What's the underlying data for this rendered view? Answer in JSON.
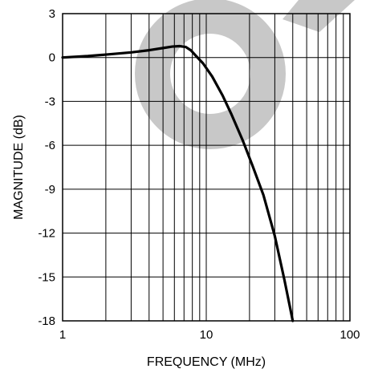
{
  "chart_data": {
    "type": "line",
    "title": "",
    "xlabel": "FREQUENCY (MHz)",
    "ylabel": "MAGNITUDE (dB)",
    "x_scale": "log",
    "xlim": [
      1,
      100
    ],
    "ylim": [
      -18,
      3
    ],
    "x_tick_labels": [
      {
        "value": 1,
        "label": "1"
      },
      {
        "value": 10,
        "label": "10"
      },
      {
        "value": 100,
        "label": "100"
      }
    ],
    "y_ticks": [
      {
        "value": 3,
        "label": "3"
      },
      {
        "value": 0,
        "label": "0"
      },
      {
        "value": -3,
        "label": "-3"
      },
      {
        "value": -6,
        "label": "-6"
      },
      {
        "value": -9,
        "label": "-9"
      },
      {
        "value": -12,
        "label": "-12"
      },
      {
        "value": -15,
        "label": "-15"
      },
      {
        "value": -18,
        "label": "-18"
      }
    ],
    "grid": true,
    "series": [
      {
        "color": "#000000",
        "points": [
          {
            "x": 1.0,
            "y": 0.0
          },
          {
            "x": 1.5,
            "y": 0.1
          },
          {
            "x": 2.0,
            "y": 0.2
          },
          {
            "x": 3.0,
            "y": 0.35
          },
          {
            "x": 4.0,
            "y": 0.5
          },
          {
            "x": 5.0,
            "y": 0.65
          },
          {
            "x": 5.8,
            "y": 0.75
          },
          {
            "x": 6.5,
            "y": 0.78
          },
          {
            "x": 7.2,
            "y": 0.72
          },
          {
            "x": 7.8,
            "y": 0.5
          },
          {
            "x": 8.5,
            "y": 0.1
          },
          {
            "x": 9.5,
            "y": -0.4
          },
          {
            "x": 11.0,
            "y": -1.3
          },
          {
            "x": 13.0,
            "y": -2.6
          },
          {
            "x": 15.0,
            "y": -3.9
          },
          {
            "x": 18.0,
            "y": -5.7
          },
          {
            "x": 21.0,
            "y": -7.4
          },
          {
            "x": 25.0,
            "y": -9.4
          },
          {
            "x": 30.0,
            "y": -12.2
          },
          {
            "x": 35.0,
            "y": -15.2
          },
          {
            "x": 40.0,
            "y": -18.0
          }
        ]
      }
    ]
  },
  "watermark": {
    "color": "#c8c8c8"
  }
}
